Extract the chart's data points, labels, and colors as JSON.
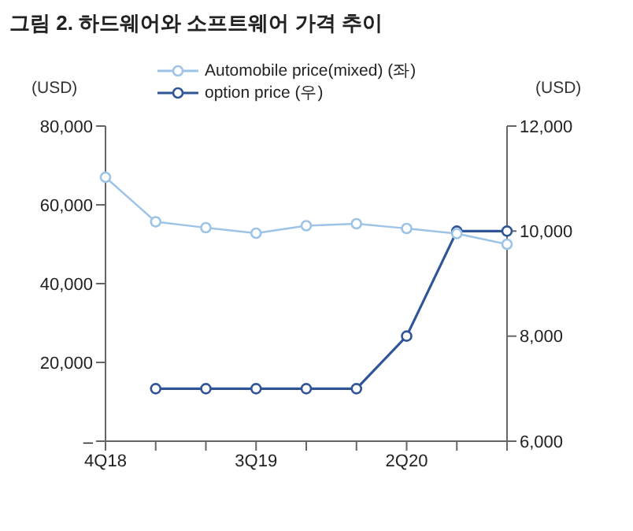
{
  "chart_data": {
    "type": "line",
    "title": "그림 2. 하드웨어와 소프트웨어 가격 추이",
    "ylabel": "(USD)",
    "y2label": "(USD)",
    "categories": [
      "4Q18",
      null,
      null,
      "3Q19",
      null,
      null,
      "2Q20",
      null,
      null
    ],
    "series": [
      {
        "name": "Automobile price(mixed) (좌)",
        "color": "#9dc3e6",
        "values": [
          67000,
          55700,
          54200,
          52800,
          54700,
          55200,
          54000,
          52700,
          50000
        ]
      },
      {
        "name": "option price (우)",
        "color": "#2f5597",
        "axis": "y2",
        "values": [
          null,
          7000,
          7000,
          7000,
          7000,
          7000,
          8000,
          10000,
          10000
        ]
      }
    ],
    "ylim": [
      0,
      80000
    ],
    "yticks": [
      {
        "value": 0,
        "label": "–"
      },
      {
        "value": 20000,
        "label": "20,000"
      },
      {
        "value": 40000,
        "label": "40,000"
      },
      {
        "value": 60000,
        "label": "60,000"
      },
      {
        "value": 80000,
        "label": "80,000"
      }
    ],
    "y2lim": [
      6000,
      12000
    ],
    "y2ticks": [
      {
        "value": 6000,
        "label": "6,000"
      },
      {
        "value": 8000,
        "label": "8,000"
      },
      {
        "value": 10000,
        "label": "10,000"
      },
      {
        "value": 12000,
        "label": "12,000"
      }
    ],
    "grid": false,
    "legend": "top",
    "marker": "circle",
    "line_style": "solid"
  }
}
